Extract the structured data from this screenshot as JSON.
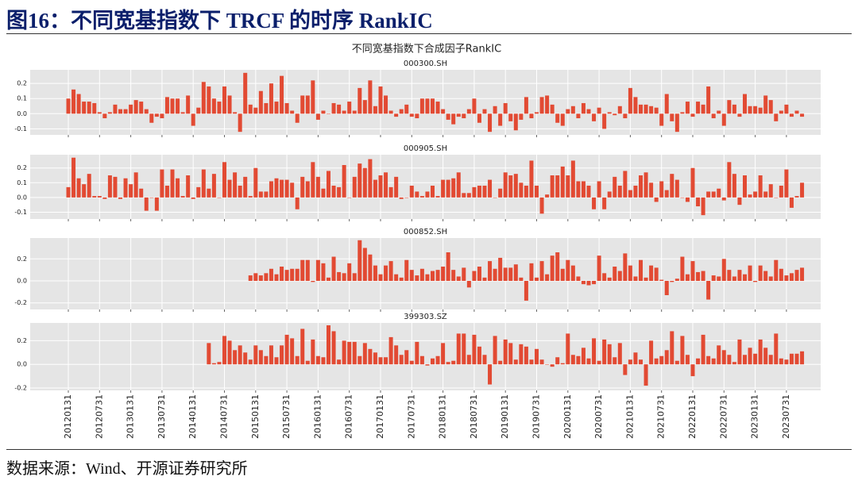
{
  "header": {
    "title": "图16：不同宽基指数下 TRCF 的时序 RankIC"
  },
  "source": "数据来源：Wind、开源证券研究所",
  "chart_data": {
    "type": "bar",
    "title": "不同宽基指数下合成因子RankIC",
    "color": "#e24a33",
    "grid": true,
    "categories": [
      "20120131",
      null,
      null,
      null,
      null,
      null,
      "20120731",
      null,
      null,
      null,
      null,
      null,
      "20130131",
      null,
      null,
      null,
      null,
      null,
      "20130731",
      null,
      null,
      null,
      null,
      null,
      "20140131",
      null,
      null,
      null,
      null,
      null,
      "20140731",
      null,
      null,
      null,
      null,
      null,
      "20150131",
      null,
      null,
      null,
      null,
      null,
      "20150731",
      null,
      null,
      null,
      null,
      null,
      "20160131",
      null,
      null,
      null,
      null,
      null,
      "20160731",
      null,
      null,
      null,
      null,
      null,
      "20170131",
      null,
      null,
      null,
      null,
      null,
      "20170731",
      null,
      null,
      null,
      null,
      null,
      "20180131",
      null,
      null,
      null,
      null,
      null,
      "20180731",
      null,
      null,
      null,
      null,
      null,
      "20190131",
      null,
      null,
      null,
      null,
      null,
      "20190731",
      null,
      null,
      null,
      null,
      null,
      "20200131",
      null,
      null,
      null,
      null,
      null,
      "20200731",
      null,
      null,
      null,
      null,
      null,
      "20210131",
      null,
      null,
      null,
      null,
      null,
      "20210731",
      null,
      null,
      null,
      null,
      null,
      "20220131",
      null,
      null,
      null,
      null,
      null,
      "20220731",
      null,
      null,
      null,
      null,
      null,
      "20230131",
      null,
      null,
      null,
      null,
      null,
      "20230731",
      null,
      null,
      null
    ],
    "panels": [
      {
        "subtitle": "000300.SH",
        "ylim": [
          -0.14,
          0.29
        ],
        "yticks": [
          -0.1,
          {
            "value": 0,
            "label": "0.0"
          },
          0.1,
          0.2
        ],
        "values": [
          0.1,
          0.16,
          0.13,
          0.08,
          0.08,
          0.07,
          0.01,
          -0.03,
          0.01,
          0.06,
          0.03,
          0.03,
          0.06,
          0.09,
          0.08,
          0.03,
          -0.06,
          -0.02,
          -0.03,
          0.11,
          0.1,
          0.1,
          0.01,
          0.12,
          -0.08,
          0.04,
          0.21,
          0.18,
          0.1,
          0.08,
          0.18,
          0.12,
          0.01,
          -0.12,
          0.27,
          0.06,
          0.04,
          0.15,
          0.07,
          0.2,
          0.08,
          0.25,
          0.07,
          0.02,
          -0.06,
          0.12,
          0.12,
          0.22,
          -0.04,
          0.02,
          0.0,
          0.07,
          0.06,
          0.02,
          0.08,
          0.02,
          0.17,
          0.09,
          0.22,
          0.05,
          0.18,
          0.12,
          0.02,
          -0.02,
          0.03,
          0.06,
          -0.02,
          -0.03,
          0.1,
          0.1,
          0.1,
          0.08,
          0.03,
          -0.04,
          -0.07,
          -0.02,
          -0.03,
          0.03,
          0.1,
          -0.06,
          0.03,
          -0.12,
          0.05,
          -0.08,
          0.07,
          -0.05,
          -0.11,
          -0.04,
          0.11,
          -0.03,
          0.01,
          0.11,
          0.12,
          0.06,
          -0.06,
          -0.08,
          0.03,
          0.05,
          -0.03,
          0.07,
          0.03,
          -0.05,
          0.04,
          -0.1,
          0.01,
          -0.01,
          0.05,
          -0.03,
          0.17,
          0.11,
          0.06,
          0.06,
          0.05,
          0.04,
          -0.08,
          0.13,
          -0.05,
          -0.12,
          0.01,
          0.08,
          -0.02,
          0.08,
          0.06,
          0.18,
          -0.03,
          0.02,
          -0.08,
          0.09,
          0.06,
          -0.02,
          0.13,
          0.05,
          0.05,
          0.04,
          0.12,
          0.09,
          -0.05,
          0.02,
          0.06,
          -0.02,
          0.02,
          -0.02
        ]
      },
      {
        "subtitle": "000905.SH",
        "ylim": [
          -0.146,
          0.29
        ],
        "yticks": [
          -0.1,
          {
            "value": 0,
            "label": "0.0"
          },
          0.1,
          0.2
        ],
        "values": [
          0.07,
          0.27,
          0.13,
          0.09,
          0.16,
          0.01,
          0.01,
          -0.01,
          0.15,
          0.14,
          -0.01,
          0.13,
          0.09,
          0.17,
          0.06,
          -0.09,
          0.0,
          -0.09,
          0.19,
          0.08,
          0.19,
          0.13,
          0.01,
          0.15,
          -0.01,
          0.07,
          0.19,
          0.06,
          0.16,
          0.0,
          0.24,
          0.12,
          0.17,
          0.08,
          0.14,
          0.01,
          0.2,
          0.04,
          0.04,
          0.11,
          0.13,
          0.12,
          0.12,
          0.1,
          -0.08,
          0.14,
          0.11,
          0.24,
          0.14,
          0.06,
          0.18,
          0.08,
          0.07,
          0.22,
          0.0,
          0.14,
          0.23,
          0.2,
          0.26,
          0.12,
          0.15,
          0.17,
          0.07,
          0.14,
          -0.01,
          0.0,
          0.08,
          0.04,
          0.01,
          0.04,
          0.08,
          0.01,
          0.12,
          0.12,
          0.13,
          0.17,
          0.03,
          0.03,
          0.07,
          0.08,
          0.08,
          0.12,
          0.0,
          0.06,
          0.17,
          0.15,
          0.16,
          0.1,
          0.08,
          0.25,
          0.08,
          -0.11,
          0.02,
          0.15,
          0.15,
          0.21,
          0.15,
          0.25,
          0.11,
          0.11,
          0.08,
          -0.08,
          0.11,
          -0.08,
          0.04,
          0.14,
          0.08,
          0.18,
          0.05,
          0.08,
          0.15,
          0.17,
          0.1,
          -0.03,
          0.11,
          0.05,
          0.16,
          0.12,
          0.0,
          -0.03,
          0.2,
          -0.06,
          -0.12,
          0.04,
          0.04,
          0.06,
          -0.02,
          0.24,
          0.16,
          -0.05,
          0.15,
          0.02,
          0.04,
          0.15,
          0.04,
          0.09,
          0.0,
          0.08,
          0.19,
          -0.07,
          0.01,
          0.1
        ]
      },
      {
        "subtitle": "000852.SH",
        "ylim": [
          -0.26,
          0.39
        ],
        "yticks": [
          -0.2,
          {
            "value": 0,
            "label": "0.0"
          },
          0.2
        ],
        "values": [
          null,
          null,
          null,
          null,
          null,
          null,
          null,
          null,
          null,
          null,
          null,
          null,
          null,
          null,
          null,
          null,
          null,
          null,
          null,
          null,
          null,
          null,
          null,
          null,
          null,
          null,
          null,
          null,
          null,
          null,
          null,
          null,
          null,
          null,
          null,
          0.05,
          0.07,
          0.05,
          0.07,
          0.11,
          0.06,
          0.13,
          0.1,
          0.11,
          0.11,
          0.19,
          0.19,
          -0.01,
          0.19,
          0.16,
          0.03,
          0.22,
          0.08,
          0.07,
          0.16,
          0.07,
          0.37,
          0.3,
          0.24,
          0.14,
          0.06,
          0.14,
          0.18,
          0.06,
          0.03,
          0.19,
          0.1,
          0.05,
          0.11,
          0.06,
          0.09,
          0.1,
          0.13,
          0.26,
          0.1,
          0.04,
          0.12,
          -0.06,
          0.09,
          0.13,
          0.03,
          0.18,
          0.11,
          0.21,
          0.12,
          0.12,
          0.15,
          0.03,
          -0.18,
          0.16,
          0.03,
          0.18,
          0.06,
          0.23,
          0.26,
          0.11,
          0.19,
          0.14,
          0.04,
          -0.03,
          -0.04,
          -0.03,
          0.23,
          0.07,
          0.03,
          0.13,
          0.09,
          0.25,
          0.14,
          0.04,
          0.19,
          0.03,
          0.14,
          0.12,
          0.01,
          -0.13,
          -0.01,
          0.02,
          0.22,
          0.06,
          0.18,
          0.08,
          0.09,
          -0.17,
          0.05,
          0.04,
          0.2,
          0.1,
          0.04,
          0.1,
          0.06,
          0.14,
          -0.01,
          0.14,
          0.09,
          0.04,
          0.19,
          0.11,
          0.05,
          0.07,
          0.1,
          0.12
        ]
      },
      {
        "subtitle": "399303.SZ",
        "ylim": [
          -0.22,
          0.35
        ],
        "yticks": [
          -0.2,
          {
            "value": 0,
            "label": "0.0"
          },
          0.2
        ],
        "values": [
          null,
          null,
          null,
          null,
          null,
          null,
          null,
          null,
          null,
          null,
          null,
          null,
          null,
          null,
          null,
          null,
          null,
          null,
          null,
          null,
          null,
          null,
          null,
          null,
          null,
          null,
          null,
          0.18,
          0.01,
          0.02,
          0.24,
          0.2,
          0.12,
          0.16,
          0.1,
          0.04,
          0.16,
          0.12,
          0.07,
          0.16,
          0.06,
          0.16,
          0.25,
          0.22,
          0.07,
          0.3,
          0.03,
          0.21,
          0.07,
          0.06,
          0.33,
          0.28,
          0.04,
          0.2,
          0.19,
          0.19,
          0.07,
          0.18,
          0.13,
          0.1,
          0.06,
          0.06,
          0.23,
          0.16,
          0.08,
          0.12,
          0.03,
          0.19,
          0.07,
          -0.01,
          0.05,
          0.07,
          0.18,
          0.02,
          0.03,
          0.26,
          0.26,
          0.08,
          0.25,
          0.15,
          0.08,
          -0.17,
          0.24,
          0.03,
          0.21,
          0.18,
          0.04,
          0.17,
          0.15,
          0.04,
          0.13,
          0.04,
          0.0,
          -0.02,
          0.06,
          0.01,
          0.26,
          0.08,
          0.07,
          0.14,
          0.05,
          0.22,
          0.03,
          0.21,
          0.17,
          0.06,
          0.18,
          -0.09,
          0.04,
          0.1,
          0.04,
          -0.18,
          0.2,
          0.05,
          0.07,
          0.12,
          0.28,
          0.03,
          0.24,
          0.08,
          -0.1,
          0.05,
          0.25,
          0.07,
          0.05,
          0.16,
          0.12,
          0.08,
          0.02,
          0.21,
          0.08,
          0.14,
          0.09,
          0.21,
          0.14,
          0.08,
          0.26,
          0.05,
          0.04,
          0.09,
          0.09,
          0.11
        ]
      }
    ]
  }
}
